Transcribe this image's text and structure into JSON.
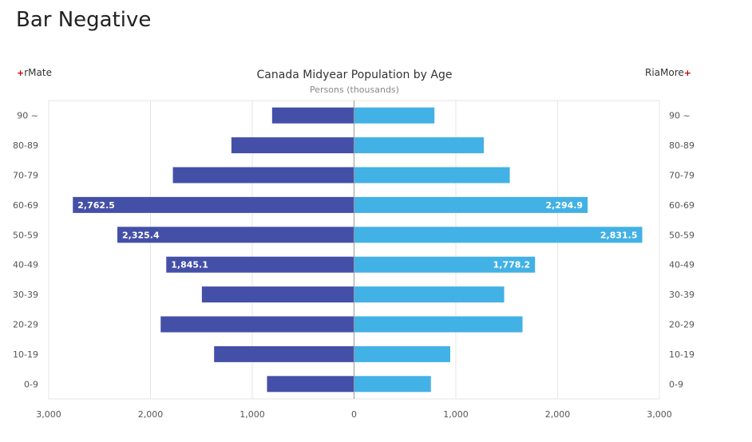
{
  "page": {
    "title": "Bar Negative"
  },
  "legend": {
    "left": "rMate",
    "right": "RiaMore",
    "mark": "+"
  },
  "chart_data": {
    "type": "bar",
    "orientation": "horizontal-mirrored",
    "title": "Canada Midyear Population by Age",
    "subtitle": "Persons (thousands)",
    "categories": [
      "90 ~",
      "80-89",
      "70-79",
      "60-69",
      "50-59",
      "40-49",
      "30-39",
      "20-29",
      "10-19",
      "0-9"
    ],
    "series": [
      {
        "name": "rMate",
        "color": "#4450a8",
        "direction": "left",
        "values": [
          805,
          1205,
          1780,
          2762.5,
          2325.4,
          1845.1,
          1495,
          1900,
          1375,
          855
        ]
      },
      {
        "name": "RiaMore",
        "color": "#42b1e5",
        "direction": "right",
        "values": [
          790,
          1275,
          1530,
          2294.9,
          2831.5,
          1778.2,
          1475,
          1655,
          945,
          755
        ]
      }
    ],
    "data_labels": {
      "rMate": [
        "",
        "",
        "",
        "2,762.5",
        "2,325.4",
        "1,845.1",
        "",
        "",
        "",
        ""
      ],
      "RiaMore": [
        "",
        "",
        "",
        "2,294.9",
        "2,831.5",
        "1,778.2",
        "",
        "",
        "",
        ""
      ]
    },
    "xlim": [
      -3000,
      3000
    ],
    "x_ticks": [
      {
        "value": -3000,
        "label": "3,000"
      },
      {
        "value": -2000,
        "label": "2,000"
      },
      {
        "value": -1000,
        "label": "1,000"
      },
      {
        "value": 0,
        "label": "0"
      },
      {
        "value": 1000,
        "label": "1,000"
      },
      {
        "value": 2000,
        "label": "2,000"
      },
      {
        "value": 3000,
        "label": "3,000"
      }
    ],
    "grid": true,
    "legend_placement": "top-corners"
  }
}
